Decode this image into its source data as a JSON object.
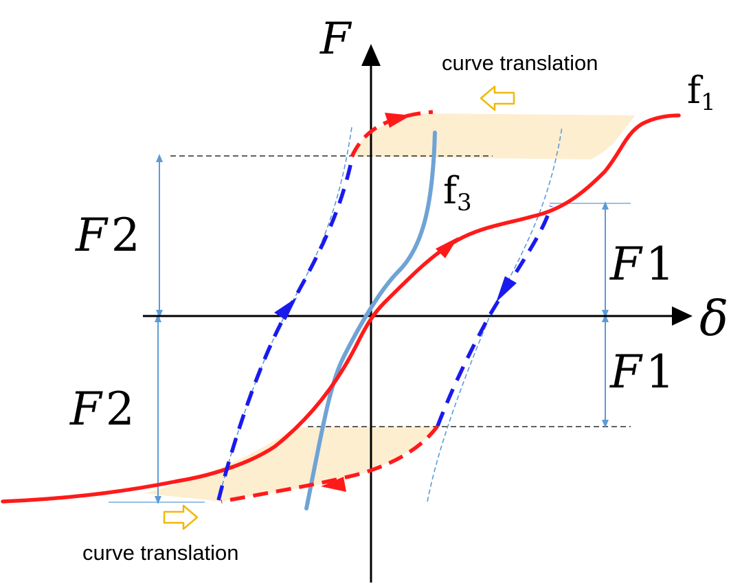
{
  "axes": {
    "y_label": "F",
    "x_label": "δ"
  },
  "curves": {
    "f1": {
      "base": "f",
      "sub": "1"
    },
    "f3": {
      "base": "f",
      "sub": "3"
    }
  },
  "annotations": {
    "translation_top": "curve translation",
    "translation_bottom": "curve translation"
  },
  "dimensions": {
    "f2_upper": {
      "letter": "F",
      "digit": "2"
    },
    "f2_lower": {
      "letter": "F",
      "digit": "2"
    },
    "f1_upper": {
      "letter": "F",
      "digit": "1"
    },
    "f1_lower": {
      "letter": "F",
      "digit": "1"
    }
  },
  "colors": {
    "axis": "#000000",
    "curve_f1": "#ff1a1a",
    "curve_f3": "#6fa3d6",
    "unloading_dashed": "#1a1aee",
    "dimension_line": "#5b9bd5",
    "shaded_band": "#fdebc8",
    "translation_arrow": "#f2b705"
  }
}
